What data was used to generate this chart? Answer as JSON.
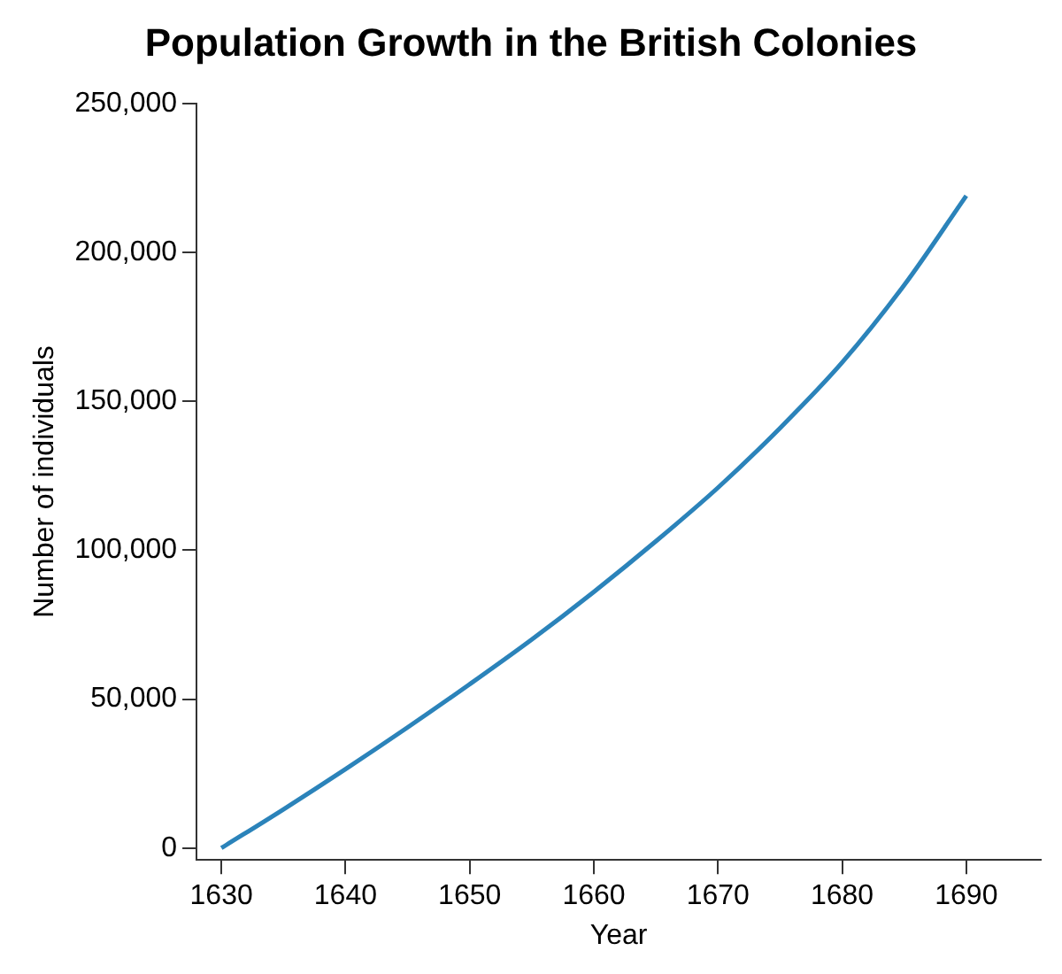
{
  "chart_data": {
    "type": "line",
    "title": "Population Growth in the British Colonies",
    "xlabel": "Year",
    "ylabel": "Number of individuals",
    "x": [
      1630,
      1635,
      1640,
      1645,
      1650,
      1655,
      1660,
      1665,
      1670,
      1675,
      1680,
      1685,
      1690
    ],
    "series": [
      {
        "color": "#2b83ba",
        "values": [
          0,
          13000,
          26500,
          40500,
          55000,
          70000,
          86000,
          103000,
          121000,
          141000,
          163000,
          189000,
          219000
        ]
      }
    ],
    "xlim": [
      1628,
      1696
    ],
    "xticks": [
      1630,
      1640,
      1650,
      1660,
      1670,
      1680,
      1690
    ],
    "ylim": [
      -4000,
      250000
    ],
    "yticks": [
      {
        "value": 0,
        "label": "0"
      },
      {
        "value": 50000,
        "label": "50,000"
      },
      {
        "value": 100000,
        "label": "100,000"
      },
      {
        "value": 150000,
        "label": "150,000"
      },
      {
        "value": 200000,
        "label": "200,000"
      },
      {
        "value": 250000,
        "label": "250,000"
      }
    ],
    "marker": "none",
    "line_style": "solid"
  }
}
